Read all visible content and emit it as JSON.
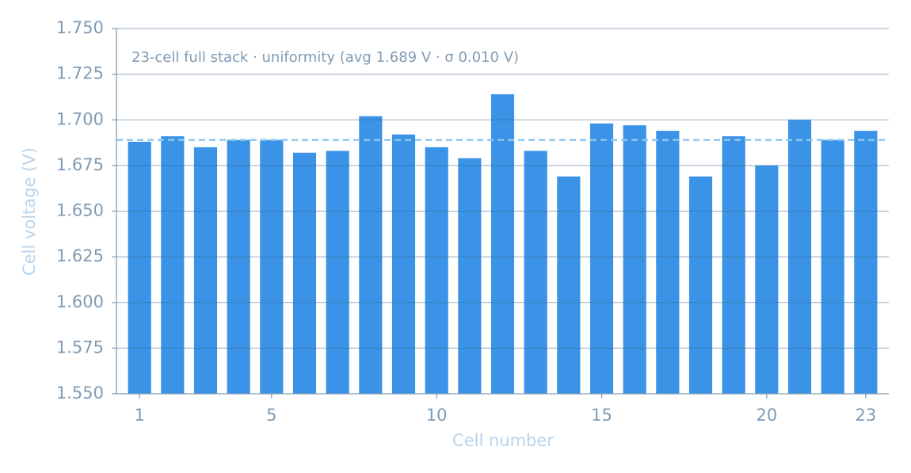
{
  "chart_data": {
    "type": "bar",
    "annotation": "23-cell full stack · uniformity (avg 1.689 V · σ 0.010 V)",
    "x_label": "Cell number",
    "y_label": "Cell voltage (V)",
    "x": [
      1,
      2,
      3,
      4,
      5,
      6,
      7,
      8,
      9,
      10,
      11,
      12,
      13,
      14,
      15,
      16,
      17,
      18,
      19,
      20,
      21,
      22,
      23
    ],
    "values": [
      1.688,
      1.691,
      1.685,
      1.689,
      1.689,
      1.682,
      1.683,
      1.702,
      1.692,
      1.685,
      1.679,
      1.714,
      1.683,
      1.669,
      1.698,
      1.697,
      1.694,
      1.669,
      1.691,
      1.675,
      1.7,
      1.689,
      1.694
    ],
    "color": "#3a93e6",
    "mean_line": 1.689,
    "mean_line_color": "#8ec8ee",
    "xlim": [
      0.3,
      23.7
    ],
    "xticks": [
      1,
      5,
      10,
      15,
      20,
      23
    ],
    "ylim": [
      1.55,
      1.75
    ],
    "yticks": [
      {
        "value": 1.55,
        "label": "1.550"
      },
      1.575,
      {
        "value": 1.6,
        "label": "1.600"
      },
      1.625,
      {
        "value": 1.65,
        "label": "1.650"
      },
      1.675,
      {
        "value": 1.7,
        "label": "1.700"
      },
      1.725,
      {
        "value": 1.75,
        "label": "1.750"
      }
    ],
    "grid": true
  }
}
